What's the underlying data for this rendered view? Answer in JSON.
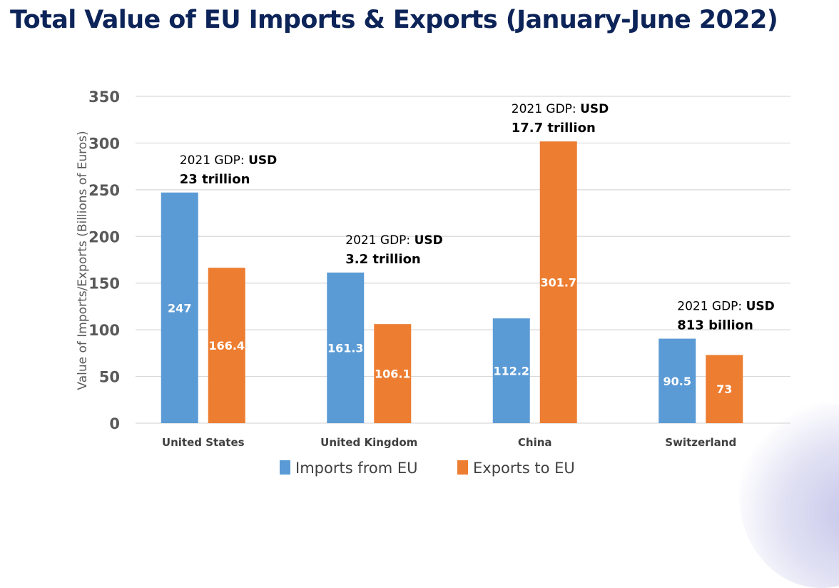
{
  "chart_data": {
    "type": "bar",
    "title": "Total Value of EU Imports & Exports (January-June 2022)",
    "xlabel": "",
    "ylabel": "Value of Imports/Exports (Billions of Euros)",
    "ylim": [
      0,
      350
    ],
    "yticks": [
      0,
      50,
      100,
      150,
      200,
      250,
      300,
      350
    ],
    "grid": true,
    "legend_position": "bottom",
    "categories": [
      "United States",
      "United Kingdom",
      "China",
      "Switzerland"
    ],
    "series": [
      {
        "name": "Imports from EU",
        "color": "#5b9bd5",
        "values": [
          247,
          161.3,
          112.2,
          90.5
        ],
        "data_labels": [
          "247",
          "161.3",
          "112.2",
          "90.5"
        ]
      },
      {
        "name": "Exports to EU",
        "color": "#ed7d31",
        "values": [
          166.4,
          106.1,
          301.7,
          73
        ],
        "data_labels": [
          "166.4",
          "106.1",
          "301.7",
          "73"
        ]
      }
    ],
    "annotations": [
      {
        "category": "United States",
        "line1": "2021 GDP: ",
        "line1_bold": "USD",
        "line2": "23 trillion"
      },
      {
        "category": "United Kingdom",
        "line1": "2021 GDP: ",
        "line1_bold": "USD",
        "line2": "3.2 trillion"
      },
      {
        "category": "China",
        "line1": "2021 GDP: ",
        "line1_bold": "USD",
        "line2": "17.7 trillion"
      },
      {
        "category": "Switzerland",
        "line1": "2021 GDP: ",
        "line1_bold": "USD",
        "line2": "813 billion"
      }
    ]
  }
}
